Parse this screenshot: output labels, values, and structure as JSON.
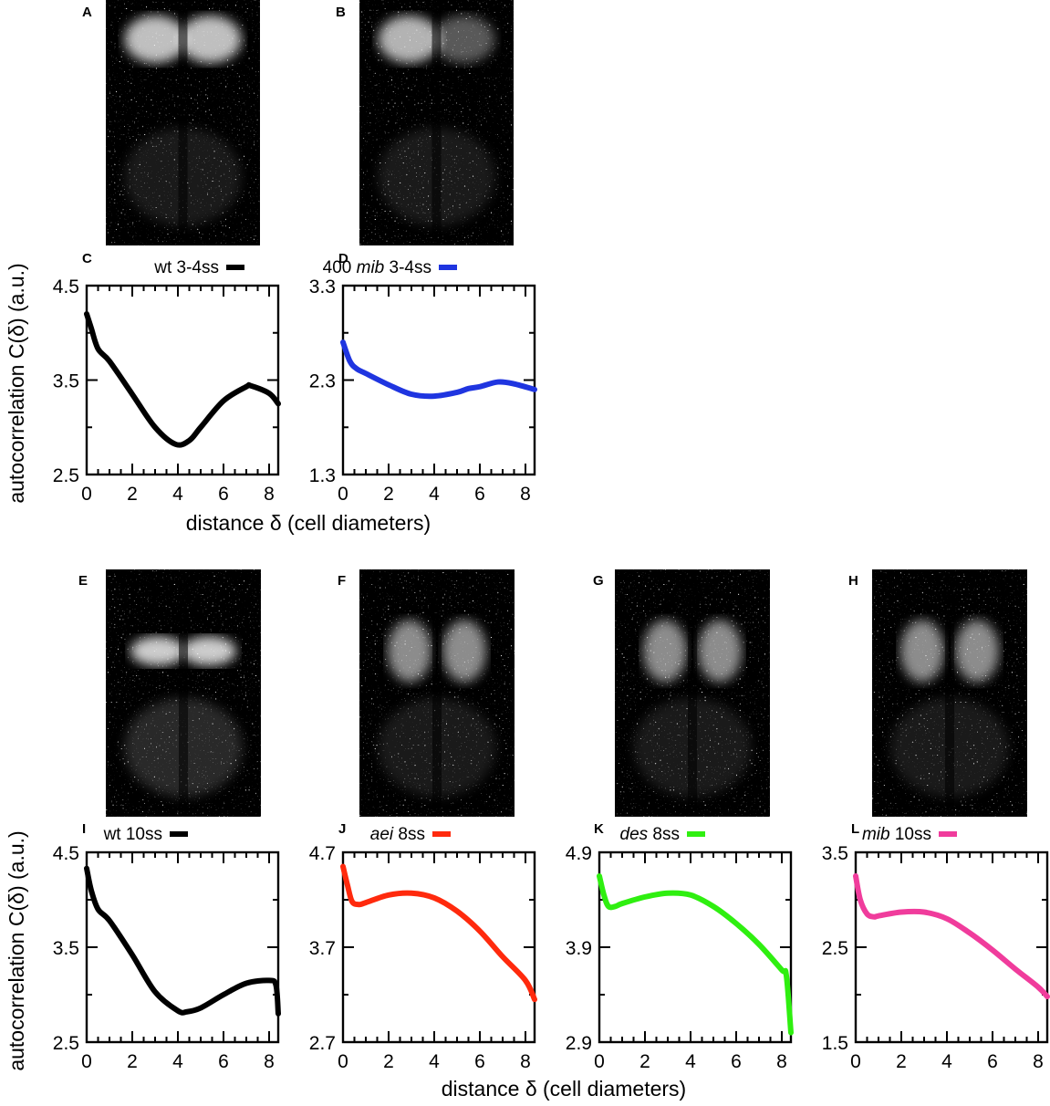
{
  "figure": {
    "ylabel": "autocorrelation C(δ) (a.u.)",
    "xlabel": "distance δ (cell diameters)"
  },
  "images": [
    {
      "letter": "A",
      "color": "#000000"
    },
    {
      "letter": "B",
      "color": "#000000"
    },
    {
      "letter": "E",
      "color": "#000000"
    },
    {
      "letter": "F",
      "color": "#000000"
    },
    {
      "letter": "G",
      "color": "#000000"
    },
    {
      "letter": "H",
      "color": "#000000"
    }
  ],
  "chart_data": [
    {
      "type": "line",
      "panel": "C",
      "legend": [
        {
          "text": "wt 3-4ss",
          "italic": false
        }
      ],
      "color": "#000000",
      "xlim": [
        0,
        8.4
      ],
      "ylim": [
        2.5,
        4.5
      ],
      "xticks": [
        "0",
        "2",
        "4",
        "6",
        "8"
      ],
      "yticks": [
        "2.5",
        "3.5",
        "4.5"
      ],
      "x": [
        0,
        0.2,
        0.5,
        1,
        2,
        3,
        3.9,
        4.5,
        5,
        6,
        7,
        7.2,
        8,
        8.4
      ],
      "y": [
        4.2,
        4.05,
        3.83,
        3.7,
        3.35,
        3.0,
        2.82,
        2.86,
        3.0,
        3.28,
        3.43,
        3.44,
        3.36,
        3.25
      ]
    },
    {
      "type": "line",
      "panel": "D",
      "legend": [
        {
          "text": "400 ",
          "italic": false
        },
        {
          "text": "mib",
          "italic": true
        },
        {
          "text": " 3-4ss",
          "italic": false
        }
      ],
      "color": "#1f35e0",
      "xlim": [
        0,
        8.4
      ],
      "ylim": [
        1.3,
        3.3
      ],
      "xticks": [
        "0",
        "2",
        "4",
        "6",
        "8"
      ],
      "yticks": [
        "1.3",
        "2.3",
        "3.3"
      ],
      "x": [
        0,
        0.3,
        0.6,
        1,
        2,
        3,
        4,
        5,
        5.5,
        6,
        6.8,
        7.5,
        8.4
      ],
      "y": [
        2.7,
        2.5,
        2.42,
        2.37,
        2.25,
        2.15,
        2.13,
        2.17,
        2.21,
        2.23,
        2.28,
        2.26,
        2.2
      ]
    },
    {
      "type": "line",
      "panel": "I",
      "legend": [
        {
          "text": "wt 10ss",
          "italic": false
        }
      ],
      "color": "#000000",
      "xlim": [
        0,
        8.4
      ],
      "ylim": [
        2.5,
        4.5
      ],
      "xticks": [
        "0",
        "2",
        "4",
        "6",
        "8"
      ],
      "yticks": [
        "2.5",
        "3.5",
        "4.5"
      ],
      "x": [
        0,
        0.2,
        0.5,
        1,
        2,
        3,
        4,
        4.4,
        5,
        6,
        7,
        8,
        8.3,
        8.4
      ],
      "y": [
        4.33,
        4.1,
        3.9,
        3.78,
        3.42,
        3.03,
        2.83,
        2.82,
        2.86,
        3.0,
        3.12,
        3.15,
        3.1,
        2.8
      ]
    },
    {
      "type": "line",
      "panel": "J",
      "legend": [
        {
          "text": "aei",
          "italic": true
        },
        {
          "text": " 8ss",
          "italic": false
        }
      ],
      "color": "#ff2a0d",
      "xlim": [
        0,
        8.4
      ],
      "ylim": [
        2.7,
        4.7
      ],
      "xticks": [
        "0",
        "2",
        "4",
        "6",
        "8"
      ],
      "yticks": [
        "2.7",
        "3.7",
        "4.7"
      ],
      "x": [
        0,
        0.2,
        0.4,
        0.7,
        1,
        2,
        3,
        4,
        5,
        6,
        7,
        8,
        8.4
      ],
      "y": [
        4.55,
        4.35,
        4.18,
        4.15,
        4.17,
        4.25,
        4.27,
        4.22,
        4.08,
        3.87,
        3.6,
        3.35,
        3.15
      ]
    },
    {
      "type": "line",
      "panel": "K",
      "legend": [
        {
          "text": "des",
          "italic": true
        },
        {
          "text": " 8ss",
          "italic": false
        }
      ],
      "color": "#2fef10",
      "xlim": [
        0,
        8.4
      ],
      "ylim": [
        2.9,
        4.9
      ],
      "xticks": [
        "0",
        "2",
        "4",
        "6",
        "8"
      ],
      "yticks": [
        "2.9",
        "3.9",
        "4.9"
      ],
      "x": [
        0,
        0.2,
        0.4,
        0.7,
        1,
        2,
        3,
        4,
        5,
        6,
        7,
        8,
        8.2,
        8.4
      ],
      "y": [
        4.65,
        4.45,
        4.33,
        4.33,
        4.36,
        4.43,
        4.47,
        4.45,
        4.33,
        4.15,
        3.93,
        3.66,
        3.6,
        3.0
      ]
    },
    {
      "type": "line",
      "panel": "L",
      "legend": [
        {
          "text": "mib",
          "italic": true
        },
        {
          "text": " 10ss",
          "italic": false
        }
      ],
      "color": "#f03c9c",
      "xlim": [
        0,
        8.4
      ],
      "ylim": [
        1.5,
        3.5
      ],
      "xticks": [
        "0",
        "2",
        "4",
        "6",
        "8"
      ],
      "yticks": [
        "1.5",
        "2.5",
        "3.5"
      ],
      "x": [
        0,
        0.2,
        0.5,
        0.8,
        1,
        2,
        3,
        4,
        5,
        6,
        7,
        8,
        8.4
      ],
      "y": [
        3.25,
        3.0,
        2.85,
        2.82,
        2.83,
        2.87,
        2.87,
        2.8,
        2.65,
        2.47,
        2.27,
        2.08,
        1.98
      ]
    }
  ]
}
